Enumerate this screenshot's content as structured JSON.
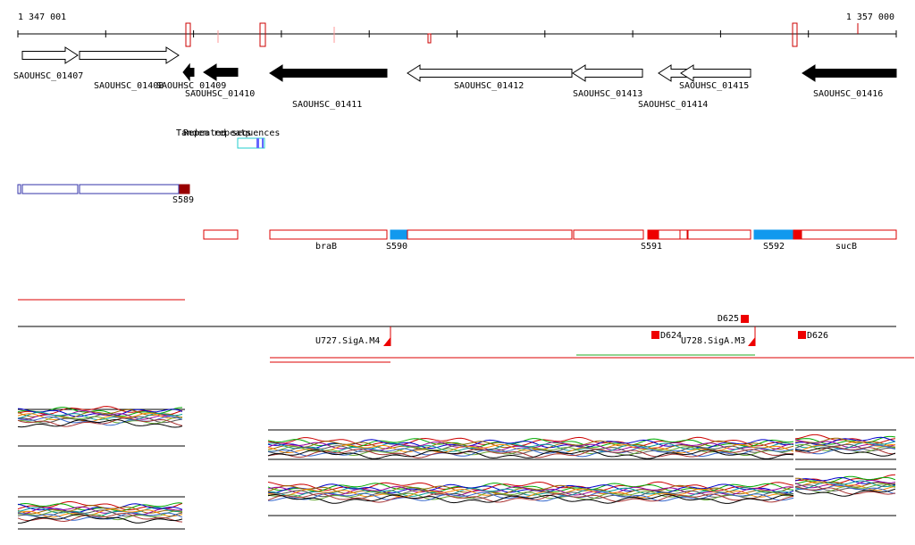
{
  "ruler": {
    "start": "1 347 001",
    "end": "1 357 000"
  },
  "genes": [
    "SAOUHSC_01407",
    "SAOUHSC_01408",
    "SAOUHSC_01409",
    "SAOUHSC_01410",
    "SAOUHSC_01411",
    "SAOUHSC_01412",
    "SAOUHSC_01413",
    "SAOUHSC_01414",
    "SAOUHSC_01415",
    "SAOUHSC_01416"
  ],
  "repeats": [
    "Tandem repeats",
    "Repeated sequences"
  ],
  "segments": [
    "S589",
    "braB",
    "S590",
    "S591",
    "S592",
    "sucB"
  ],
  "terminators": [
    "D625",
    "D624",
    "D626",
    "U727.SigA.M4",
    "U728.SigA.M3"
  ]
}
